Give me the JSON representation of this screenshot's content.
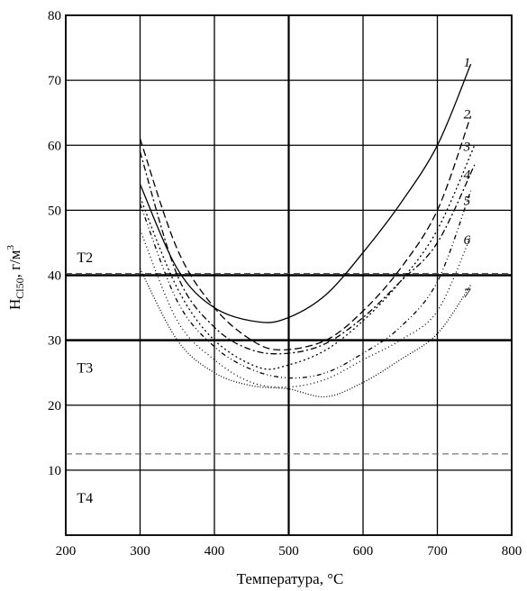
{
  "chart_data": {
    "type": "line",
    "xlabel": "Температура, °С",
    "ylabel_main": "H",
    "ylabel_sub": "Cl50",
    "ylabel_unit": ", г/м",
    "ylabel_sup": "3",
    "xlim": [
      200,
      800
    ],
    "ylim": [
      0,
      80
    ],
    "x_ticks": [
      200,
      300,
      400,
      500,
      600,
      700,
      800
    ],
    "y_ticks": [
      0,
      10,
      20,
      30,
      40,
      50,
      60,
      70,
      80
    ],
    "x_tick_labels": [
      "200",
      "300",
      "400",
      "500",
      "600",
      "700",
      "800"
    ],
    "y_tick_labels": [
      "10",
      "20",
      "30",
      "40",
      "50",
      "60",
      "70",
      "80"
    ],
    "grid": true,
    "reference_lines": [
      {
        "y": 40,
        "style": "solid",
        "bold": true
      },
      {
        "y": 30,
        "style": "solid",
        "bold": true
      },
      {
        "y": 40,
        "style": "dashed",
        "bold": false
      },
      {
        "y": 12.5,
        "style": "dashed",
        "bold": false
      }
    ],
    "regions": [
      {
        "label": "T2",
        "x": 215,
        "y": 42
      },
      {
        "label": "T3",
        "x": 215,
        "y": 25
      },
      {
        "label": "T4",
        "x": 215,
        "y": 5
      }
    ],
    "series": [
      {
        "name": "1",
        "dash": "none",
        "x": [
          300,
          350,
          400,
          460,
          500,
          550,
          600,
          650,
          700,
          745
        ],
        "y": [
          54,
          41,
          35,
          32.8,
          33.5,
          37,
          43.5,
          51,
          60,
          72.5
        ]
      },
      {
        "name": "2",
        "dash": "8,4",
        "x": [
          300,
          350,
          400,
          450,
          490,
          550,
          600,
          650,
          700,
          745
        ],
        "y": [
          61,
          44,
          35,
          30,
          28.5,
          30,
          34.5,
          41,
          50,
          64.5
        ]
      },
      {
        "name": "3",
        "dash": "2,3",
        "x": [
          300,
          350,
          400,
          460,
          500,
          550,
          600,
          650,
          700,
          750
        ],
        "y": [
          52,
          38,
          30,
          25.8,
          26.2,
          28.5,
          33,
          39,
          47,
          60
        ]
      },
      {
        "name": "4",
        "dash": "7,3,2,3",
        "x": [
          300,
          350,
          400,
          450,
          500,
          550,
          600,
          650,
          700,
          750
        ],
        "y": [
          59,
          40,
          32,
          28.5,
          28,
          29.5,
          33.5,
          39,
          45,
          57
        ]
      },
      {
        "name": "5",
        "dash": "5,3,1,3,1,3",
        "x": [
          300,
          350,
          400,
          450,
          500,
          550,
          600,
          650,
          700,
          745
        ],
        "y": [
          51,
          36,
          29,
          25.5,
          24.2,
          25,
          28,
          32,
          39,
          53
        ]
      },
      {
        "name": "6",
        "dash": "1,3",
        "x": [
          300,
          350,
          400,
          450,
          500,
          550,
          600,
          650,
          700,
          745
        ],
        "y": [
          47,
          33,
          27,
          23.5,
          22.8,
          24,
          27,
          30,
          34.5,
          46
        ]
      },
      {
        "name": "7",
        "dash": "1,2",
        "x": [
          300,
          350,
          400,
          450,
          500,
          550,
          600,
          650,
          700,
          745
        ],
        "y": [
          41,
          30,
          25,
          23,
          22.5,
          21.3,
          23.5,
          27,
          31,
          38.5
        ]
      }
    ],
    "series_labels": [
      {
        "name": "1",
        "x": 762,
        "y": 72.8
      },
      {
        "name": "2",
        "x": 762,
        "y": 64.8
      },
      {
        "name": "3",
        "x": 762,
        "y": 59.8
      },
      {
        "name": "4",
        "x": 762,
        "y": 55.5
      },
      {
        "name": "5",
        "x": 762,
        "y": 51.5
      },
      {
        "name": "6",
        "x": 762,
        "y": 45.5
      },
      {
        "name": "7",
        "x": 762,
        "y": 37.3
      }
    ]
  }
}
